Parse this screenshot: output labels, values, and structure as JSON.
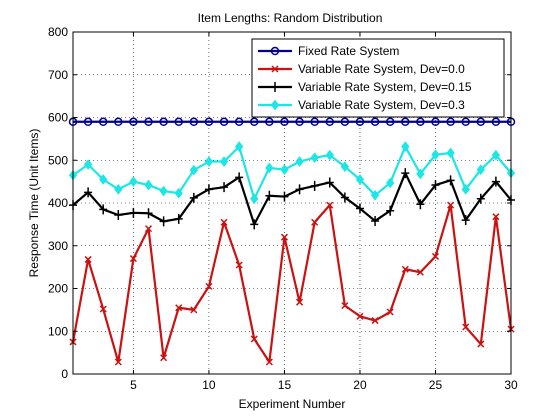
{
  "chart_data": {
    "type": "line",
    "title": "Item Lengths: Random Distribution",
    "xlabel": "Experiment Number",
    "ylabel": "Response Time (Unit Items)",
    "xlim": [
      1,
      30
    ],
    "ylim": [
      0,
      800
    ],
    "xticks": [
      5,
      10,
      15,
      20,
      25,
      30
    ],
    "yticks": [
      0,
      100,
      200,
      300,
      400,
      500,
      600,
      700,
      800
    ],
    "grid": true,
    "legend_position": "top-right",
    "x": [
      1,
      2,
      3,
      4,
      5,
      6,
      7,
      8,
      9,
      10,
      11,
      12,
      13,
      14,
      15,
      16,
      17,
      18,
      19,
      20,
      21,
      22,
      23,
      24,
      25,
      26,
      27,
      28,
      29,
      30
    ],
    "series": [
      {
        "name": "Fixed Rate System",
        "color": "#00008b",
        "marker": "circle",
        "values": [
          590,
          590,
          590,
          590,
          590,
          590,
          590,
          590,
          590,
          590,
          590,
          590,
          590,
          590,
          590,
          590,
          590,
          590,
          590,
          590,
          590,
          590,
          590,
          590,
          590,
          590,
          590,
          590,
          590,
          590
        ]
      },
      {
        "name": "Variable Rate System, Dev=0.0",
        "color": "#cc1111",
        "marker": "x",
        "values": [
          75,
          268,
          152,
          28,
          270,
          340,
          38,
          155,
          150,
          205,
          355,
          255,
          82,
          28,
          320,
          168,
          355,
          395,
          160,
          135,
          125,
          145,
          245,
          238,
          275,
          395,
          110,
          70,
          368,
          105
        ]
      },
      {
        "name": "Variable Rate System, Dev=0.15",
        "color": "#000000",
        "marker": "plus",
        "values": [
          395,
          425,
          385,
          372,
          377,
          376,
          357,
          363,
          412,
          432,
          437,
          460,
          350,
          417,
          415,
          432,
          440,
          448,
          413,
          387,
          358,
          382,
          470,
          397,
          442,
          453,
          360,
          410,
          450,
          407
        ]
      },
      {
        "name": "Variable Rate System, Dev=0.3",
        "color": "#1ce6e6",
        "marker": "diamond",
        "values": [
          465,
          490,
          455,
          432,
          450,
          442,
          428,
          423,
          477,
          497,
          497,
          532,
          410,
          482,
          478,
          497,
          506,
          512,
          485,
          455,
          418,
          447,
          532,
          468,
          513,
          517,
          432,
          478,
          512,
          470
        ]
      }
    ]
  }
}
